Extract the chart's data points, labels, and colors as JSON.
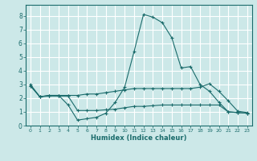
{
  "title": "",
  "xlabel": "Humidex (Indice chaleur)",
  "ylabel": "",
  "bg_color": "#cce8e8",
  "grid_color": "#ffffff",
  "line_color": "#1a6b6b",
  "xlim": [
    -0.5,
    23.5
  ],
  "ylim": [
    0,
    8.8
  ],
  "xticks": [
    0,
    1,
    2,
    3,
    4,
    5,
    6,
    7,
    8,
    9,
    10,
    11,
    12,
    13,
    14,
    15,
    16,
    17,
    18,
    19,
    20,
    21,
    22,
    23
  ],
  "yticks": [
    0,
    1,
    2,
    3,
    4,
    5,
    6,
    7,
    8
  ],
  "line1_x": [
    0,
    1,
    2,
    3,
    4,
    5,
    6,
    7,
    8,
    9,
    10,
    11,
    12,
    13,
    14,
    15,
    16,
    17,
    18,
    19,
    20,
    21,
    22,
    23
  ],
  "line1_y": [
    3.0,
    2.1,
    2.2,
    2.2,
    1.5,
    0.4,
    0.5,
    0.6,
    0.9,
    1.7,
    2.8,
    5.4,
    8.1,
    7.9,
    7.5,
    6.4,
    4.2,
    4.3,
    3.0,
    2.5,
    1.7,
    1.0,
    0.95,
    0.9
  ],
  "line2_x": [
    0,
    1,
    2,
    3,
    4,
    5,
    6,
    7,
    8,
    9,
    10,
    11,
    12,
    13,
    14,
    15,
    16,
    17,
    18,
    19,
    20,
    21,
    22,
    23
  ],
  "line2_y": [
    2.9,
    2.1,
    2.2,
    2.2,
    2.2,
    2.2,
    2.3,
    2.3,
    2.4,
    2.5,
    2.6,
    2.7,
    2.7,
    2.7,
    2.7,
    2.7,
    2.7,
    2.7,
    2.8,
    3.05,
    2.5,
    1.8,
    1.05,
    0.95
  ],
  "line3_x": [
    0,
    1,
    2,
    3,
    4,
    5,
    6,
    7,
    8,
    9,
    10,
    11,
    12,
    13,
    14,
    15,
    16,
    17,
    18,
    19,
    20,
    21,
    22,
    23
  ],
  "line3_y": [
    2.9,
    2.1,
    2.15,
    2.15,
    2.15,
    1.1,
    1.1,
    1.1,
    1.15,
    1.2,
    1.3,
    1.4,
    1.4,
    1.45,
    1.5,
    1.5,
    1.5,
    1.5,
    1.5,
    1.5,
    1.5,
    1.0,
    0.95,
    0.9
  ]
}
